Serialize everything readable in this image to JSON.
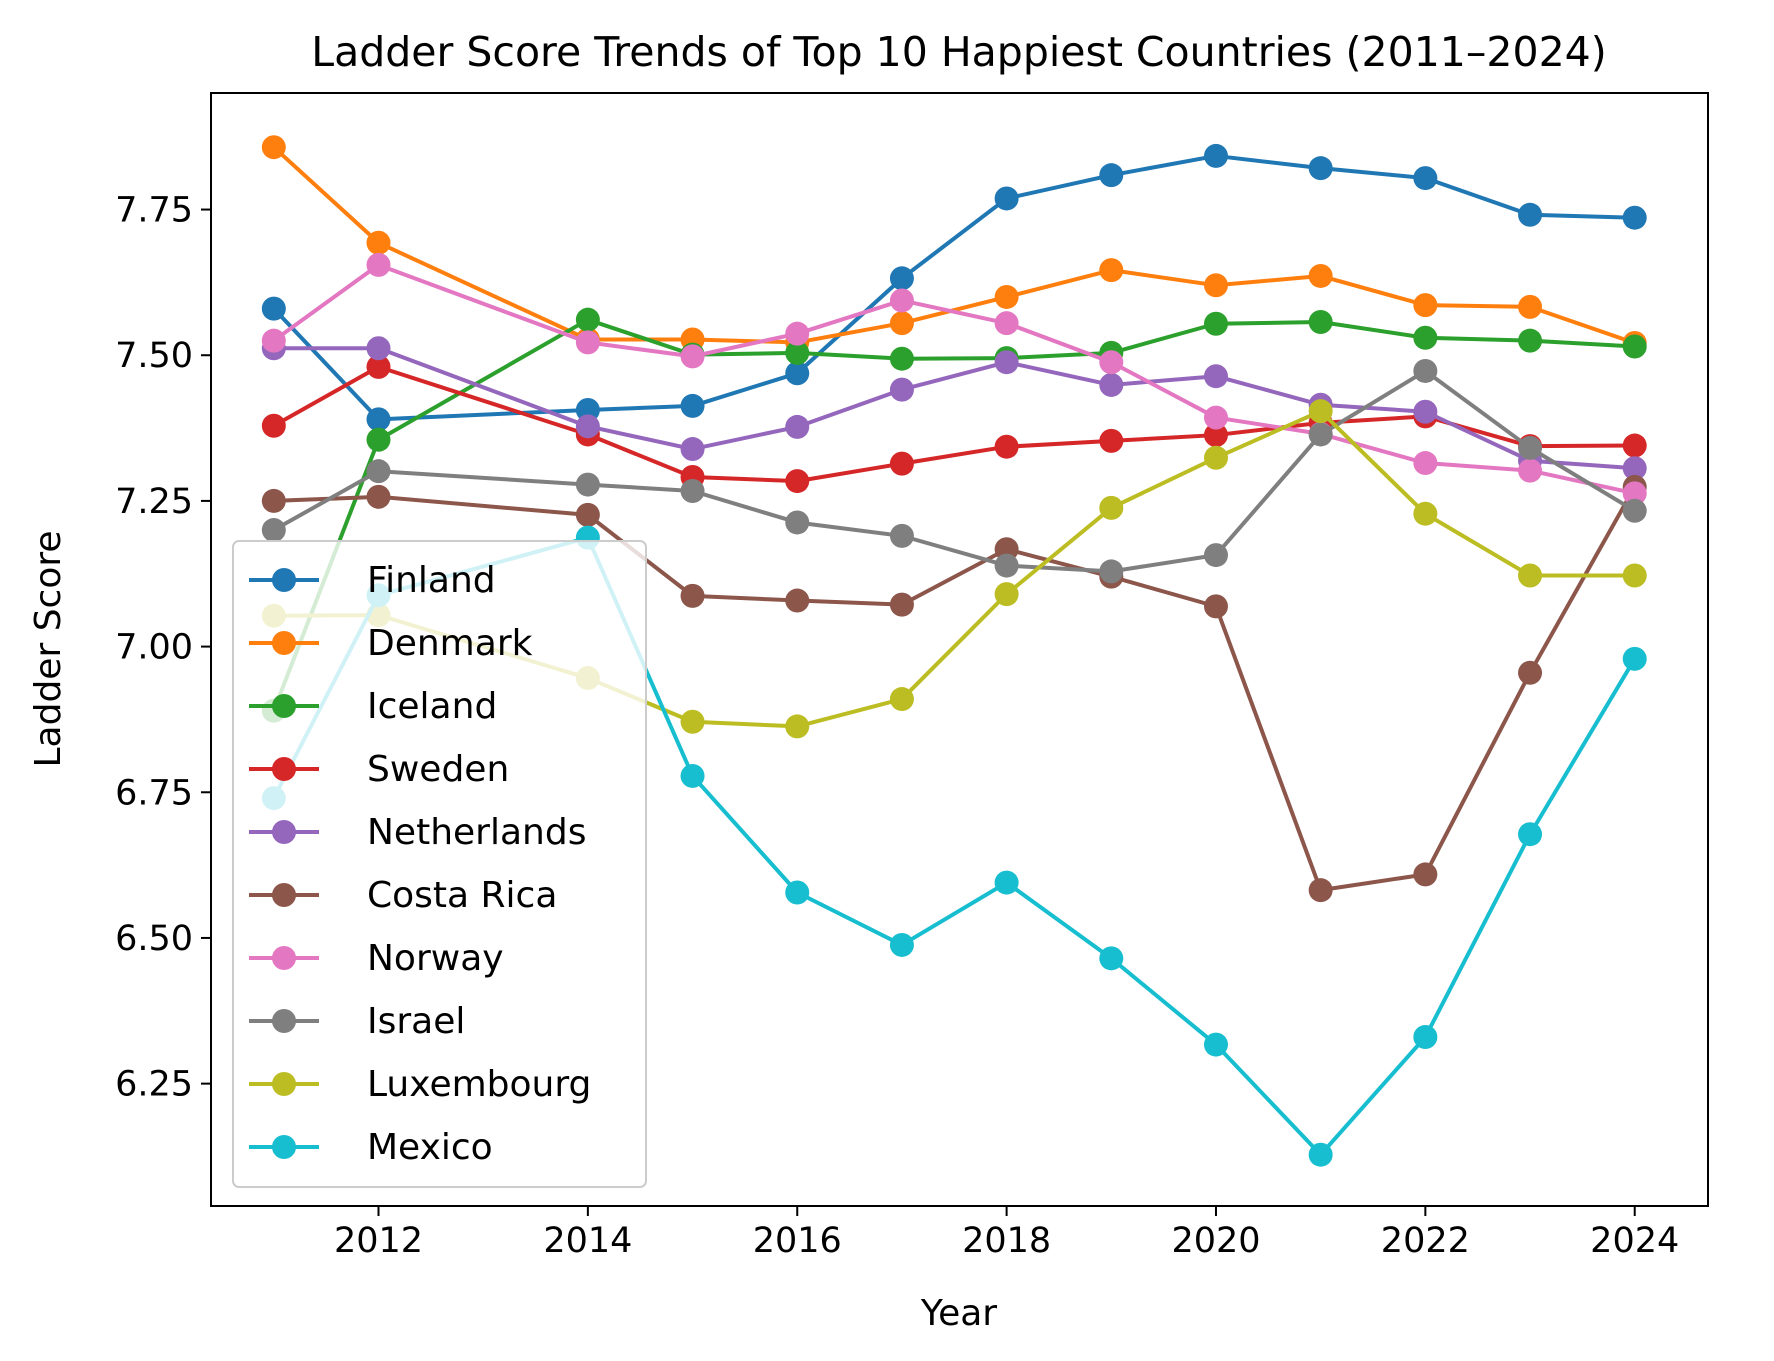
{
  "chart_data": {
    "type": "line",
    "title": "Ladder Score Trends of Top 10 Happiest Countries (2011–2024)",
    "xlabel": "Year",
    "ylabel": "Ladder Score",
    "xlim": [
      2010.4,
      2024.7
    ],
    "ylim": [
      6.04,
      7.95
    ],
    "xticks": [
      2012,
      2014,
      2016,
      2018,
      2020,
      2022,
      2024
    ],
    "yticks": [
      6.25,
      6.5,
      6.75,
      7.0,
      7.25,
      7.5,
      7.75
    ],
    "xtick_labels": [
      "2012",
      "2014",
      "2016",
      "2018",
      "2020",
      "2022",
      "2024"
    ],
    "ytick_labels": [
      "6.25",
      "6.50",
      "6.75",
      "7.00",
      "7.25",
      "7.50",
      "7.75"
    ],
    "grid": false,
    "legend_position": "lower-left",
    "x": [
      2011,
      2012,
      2014,
      2015,
      2016,
      2017,
      2018,
      2019,
      2020,
      2021,
      2022,
      2023,
      2024
    ],
    "series": [
      {
        "name": "Finland",
        "color": "#1f77b4",
        "values": [
          7.58,
          7.39,
          7.406,
          7.413,
          7.469,
          7.632,
          7.769,
          7.809,
          7.842,
          7.821,
          7.804,
          7.741,
          7.736
        ]
      },
      {
        "name": "Denmark",
        "color": "#ff7f0e",
        "values": [
          7.857,
          7.693,
          7.527,
          7.527,
          7.522,
          7.555,
          7.6,
          7.646,
          7.62,
          7.636,
          7.586,
          7.583,
          7.521
        ]
      },
      {
        "name": "Iceland",
        "color": "#2ca02c",
        "values": [
          6.89,
          7.355,
          7.561,
          7.501,
          7.504,
          7.494,
          7.495,
          7.504,
          7.554,
          7.557,
          7.53,
          7.525,
          7.515
        ]
      },
      {
        "name": "Sweden",
        "color": "#d62728",
        "values": [
          7.379,
          7.48,
          7.364,
          7.291,
          7.284,
          7.314,
          7.343,
          7.353,
          7.363,
          7.384,
          7.395,
          7.344,
          7.345
        ]
      },
      {
        "name": "Netherlands",
        "color": "#9467bd",
        "values": [
          7.512,
          7.512,
          7.378,
          7.339,
          7.377,
          7.441,
          7.488,
          7.449,
          7.464,
          7.415,
          7.403,
          7.319,
          7.306
        ]
      },
      {
        "name": "Costa Rica",
        "color": "#8c564b",
        "values": [
          7.25,
          7.257,
          7.226,
          7.087,
          7.079,
          7.072,
          7.167,
          7.12,
          7.069,
          6.582,
          6.609,
          6.955,
          7.274
        ]
      },
      {
        "name": "Norway",
        "color": "#e377c2",
        "values": [
          7.525,
          7.655,
          7.522,
          7.498,
          7.537,
          7.594,
          7.555,
          7.488,
          7.393,
          7.365,
          7.315,
          7.302,
          7.263
        ]
      },
      {
        "name": "Israel",
        "color": "#7f7f7f",
        "values": [
          7.2,
          7.301,
          7.278,
          7.267,
          7.213,
          7.19,
          7.139,
          7.129,
          7.157,
          7.364,
          7.473,
          7.341,
          7.233
        ]
      },
      {
        "name": "Luxembourg",
        "color": "#bcbd22",
        "values": [
          7.053,
          7.054,
          6.946,
          6.871,
          6.863,
          6.91,
          7.09,
          7.238,
          7.324,
          7.404,
          7.228,
          7.122,
          7.122
        ]
      },
      {
        "name": "Mexico",
        "color": "#17becf",
        "values": [
          6.74,
          7.088,
          7.187,
          6.778,
          6.578,
          6.488,
          6.595,
          6.465,
          6.317,
          6.128,
          6.33,
          6.678,
          6.979
        ]
      }
    ]
  }
}
